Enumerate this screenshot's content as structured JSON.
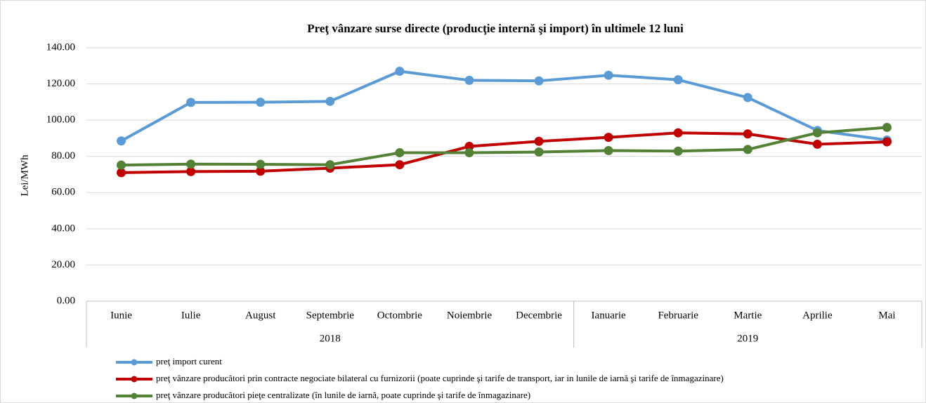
{
  "chart_data": {
    "type": "line",
    "title": "Preţ vânzare surse directe (producţie internă şi import) în ultimele 12 luni",
    "y_label": "Lei/MWh",
    "categories": [
      "Iunie",
      "Iulie",
      "August",
      "Septembrie",
      "Octombrie",
      "Noiembrie",
      "Decembrie",
      "Ianuarie",
      "Februarie",
      "Martie",
      "Aprilie",
      "Mai"
    ],
    "groups": [
      {
        "label": "2018",
        "count": 7
      },
      {
        "label": "2019",
        "count": 5
      }
    ],
    "ylim": [
      0,
      140
    ],
    "yticks": [
      {
        "value": 0,
        "label": "0.00"
      },
      {
        "value": 20,
        "label": "20.00"
      },
      {
        "value": 40,
        "label": "40.00"
      },
      {
        "value": 60,
        "label": "60.00"
      },
      {
        "value": 80,
        "label": "80.00"
      },
      {
        "value": 100,
        "label": "100.00"
      },
      {
        "value": 120,
        "label": "120.00"
      },
      {
        "value": 140,
        "label": "140.00"
      }
    ],
    "grid": true,
    "legend": "bottom",
    "series": [
      {
        "name": "preţ import curent",
        "color": "#5b9bd5",
        "values": [
          88.5,
          109.8,
          109.9,
          110.4,
          127,
          122,
          121.7,
          124.8,
          122.3,
          112.5,
          94.3,
          89
        ]
      },
      {
        "name": "preţ vânzare producători prin contracte negociate bilateral cu furnizorii (poate cuprinde şi tarife de transport, iar in lunile de iarnă şi tarife de înmagazinare)",
        "color": "#c00000",
        "values": [
          71,
          71.6,
          71.8,
          73.5,
          75.4,
          85.5,
          88.3,
          90.5,
          93,
          92.4,
          86.7,
          88
        ]
      },
      {
        "name": "preţ vânzare producători pieţe centralizate (în lunile de iarnă, poate cuprinde şi tarife de înmagazinare)",
        "color": "#538135",
        "values": [
          75.2,
          75.7,
          75.6,
          75.4,
          82,
          82,
          82.4,
          83.2,
          82.9,
          83.8,
          93,
          96
        ]
      }
    ]
  }
}
